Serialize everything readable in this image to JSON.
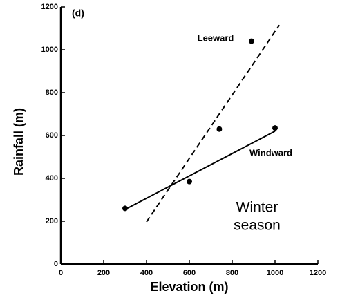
{
  "chart_data": {
    "type": "scatter",
    "panel_label": "(d)",
    "xlabel": "Elevation  (m)",
    "ylabel": "Rainfall  (m)",
    "annotation": [
      "Winter",
      "season"
    ],
    "xlim": [
      0,
      1200
    ],
    "xticks": [
      0,
      200,
      400,
      600,
      800,
      1000,
      1200
    ],
    "ylim": [
      0,
      1200
    ],
    "yticks": [
      0,
      200,
      400,
      600,
      800,
      1000,
      1200
    ],
    "series": [
      {
        "name": "Windward",
        "color": "#000000",
        "dashed": false,
        "x": [
          300,
          600,
          1000
        ],
        "values": [
          260,
          385,
          635
        ],
        "fit_x": [
          300,
          1000
        ],
        "fit_values": [
          255,
          620
        ]
      },
      {
        "name": "Leeward",
        "color": "#000000",
        "dashed": true,
        "x": [
          740,
          890
        ],
        "values": [
          630,
          1040
        ],
        "fit_x": [
          400,
          1020
        ],
        "fit_values": [
          197,
          1115
        ]
      }
    ]
  }
}
